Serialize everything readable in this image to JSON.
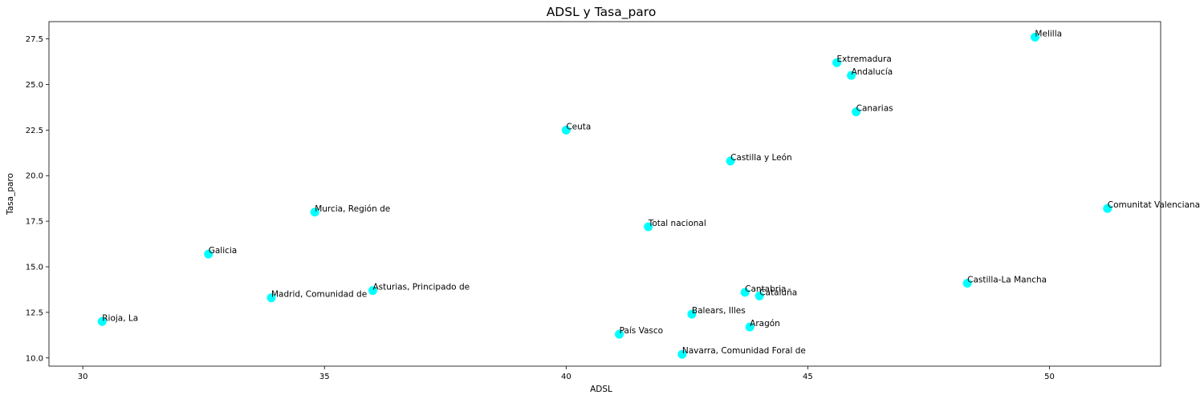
{
  "chart_data": {
    "type": "scatter",
    "title": "ADSL y Tasa_paro",
    "xlabel": "ADSL",
    "ylabel": "Tasa_paro",
    "xlim": [
      29.3,
      52.3
    ],
    "ylim": [
      9.55,
      28.45
    ],
    "xticks": [
      30,
      35,
      40,
      45,
      50
    ],
    "yticks": [
      10.0,
      12.5,
      15.0,
      17.5,
      20.0,
      22.5,
      25.0,
      27.5
    ],
    "grid": false,
    "marker_color": "#00ffff",
    "points": [
      {
        "label": "Melilla",
        "x": 49.7,
        "y": 27.6
      },
      {
        "label": "Extremadura",
        "x": 45.6,
        "y": 26.2
      },
      {
        "label": "Andalucía",
        "x": 45.9,
        "y": 25.5
      },
      {
        "label": "Canarias",
        "x": 46.0,
        "y": 23.5
      },
      {
        "label": "Ceuta",
        "x": 40.0,
        "y": 22.5
      },
      {
        "label": "Castilla y León",
        "x": 43.4,
        "y": 20.8
      },
      {
        "label": "Comunitat Valenciana",
        "x": 51.2,
        "y": 18.2
      },
      {
        "label": "Murcia, Región de",
        "x": 34.8,
        "y": 18.0
      },
      {
        "label": "Total nacional",
        "x": 41.7,
        "y": 17.2
      },
      {
        "label": "Galicia",
        "x": 32.6,
        "y": 15.7
      },
      {
        "label": "Castilla-La Mancha",
        "x": 48.3,
        "y": 14.1
      },
      {
        "label": "Asturias, Principado de",
        "x": 36.0,
        "y": 13.7
      },
      {
        "label": "Cantabria",
        "x": 43.7,
        "y": 13.6
      },
      {
        "label": "Cataluña",
        "x": 44.0,
        "y": 13.4
      },
      {
        "label": "Madrid, Comunidad de",
        "x": 33.9,
        "y": 13.3
      },
      {
        "label": "Balears, Illes",
        "x": 42.6,
        "y": 12.4
      },
      {
        "label": "Rioja, La",
        "x": 30.4,
        "y": 12.0
      },
      {
        "label": "Aragón",
        "x": 43.8,
        "y": 11.7
      },
      {
        "label": "País Vasco",
        "x": 41.1,
        "y": 11.3
      },
      {
        "label": "Navarra, Comunidad Foral de",
        "x": 42.4,
        "y": 10.2
      }
    ]
  }
}
